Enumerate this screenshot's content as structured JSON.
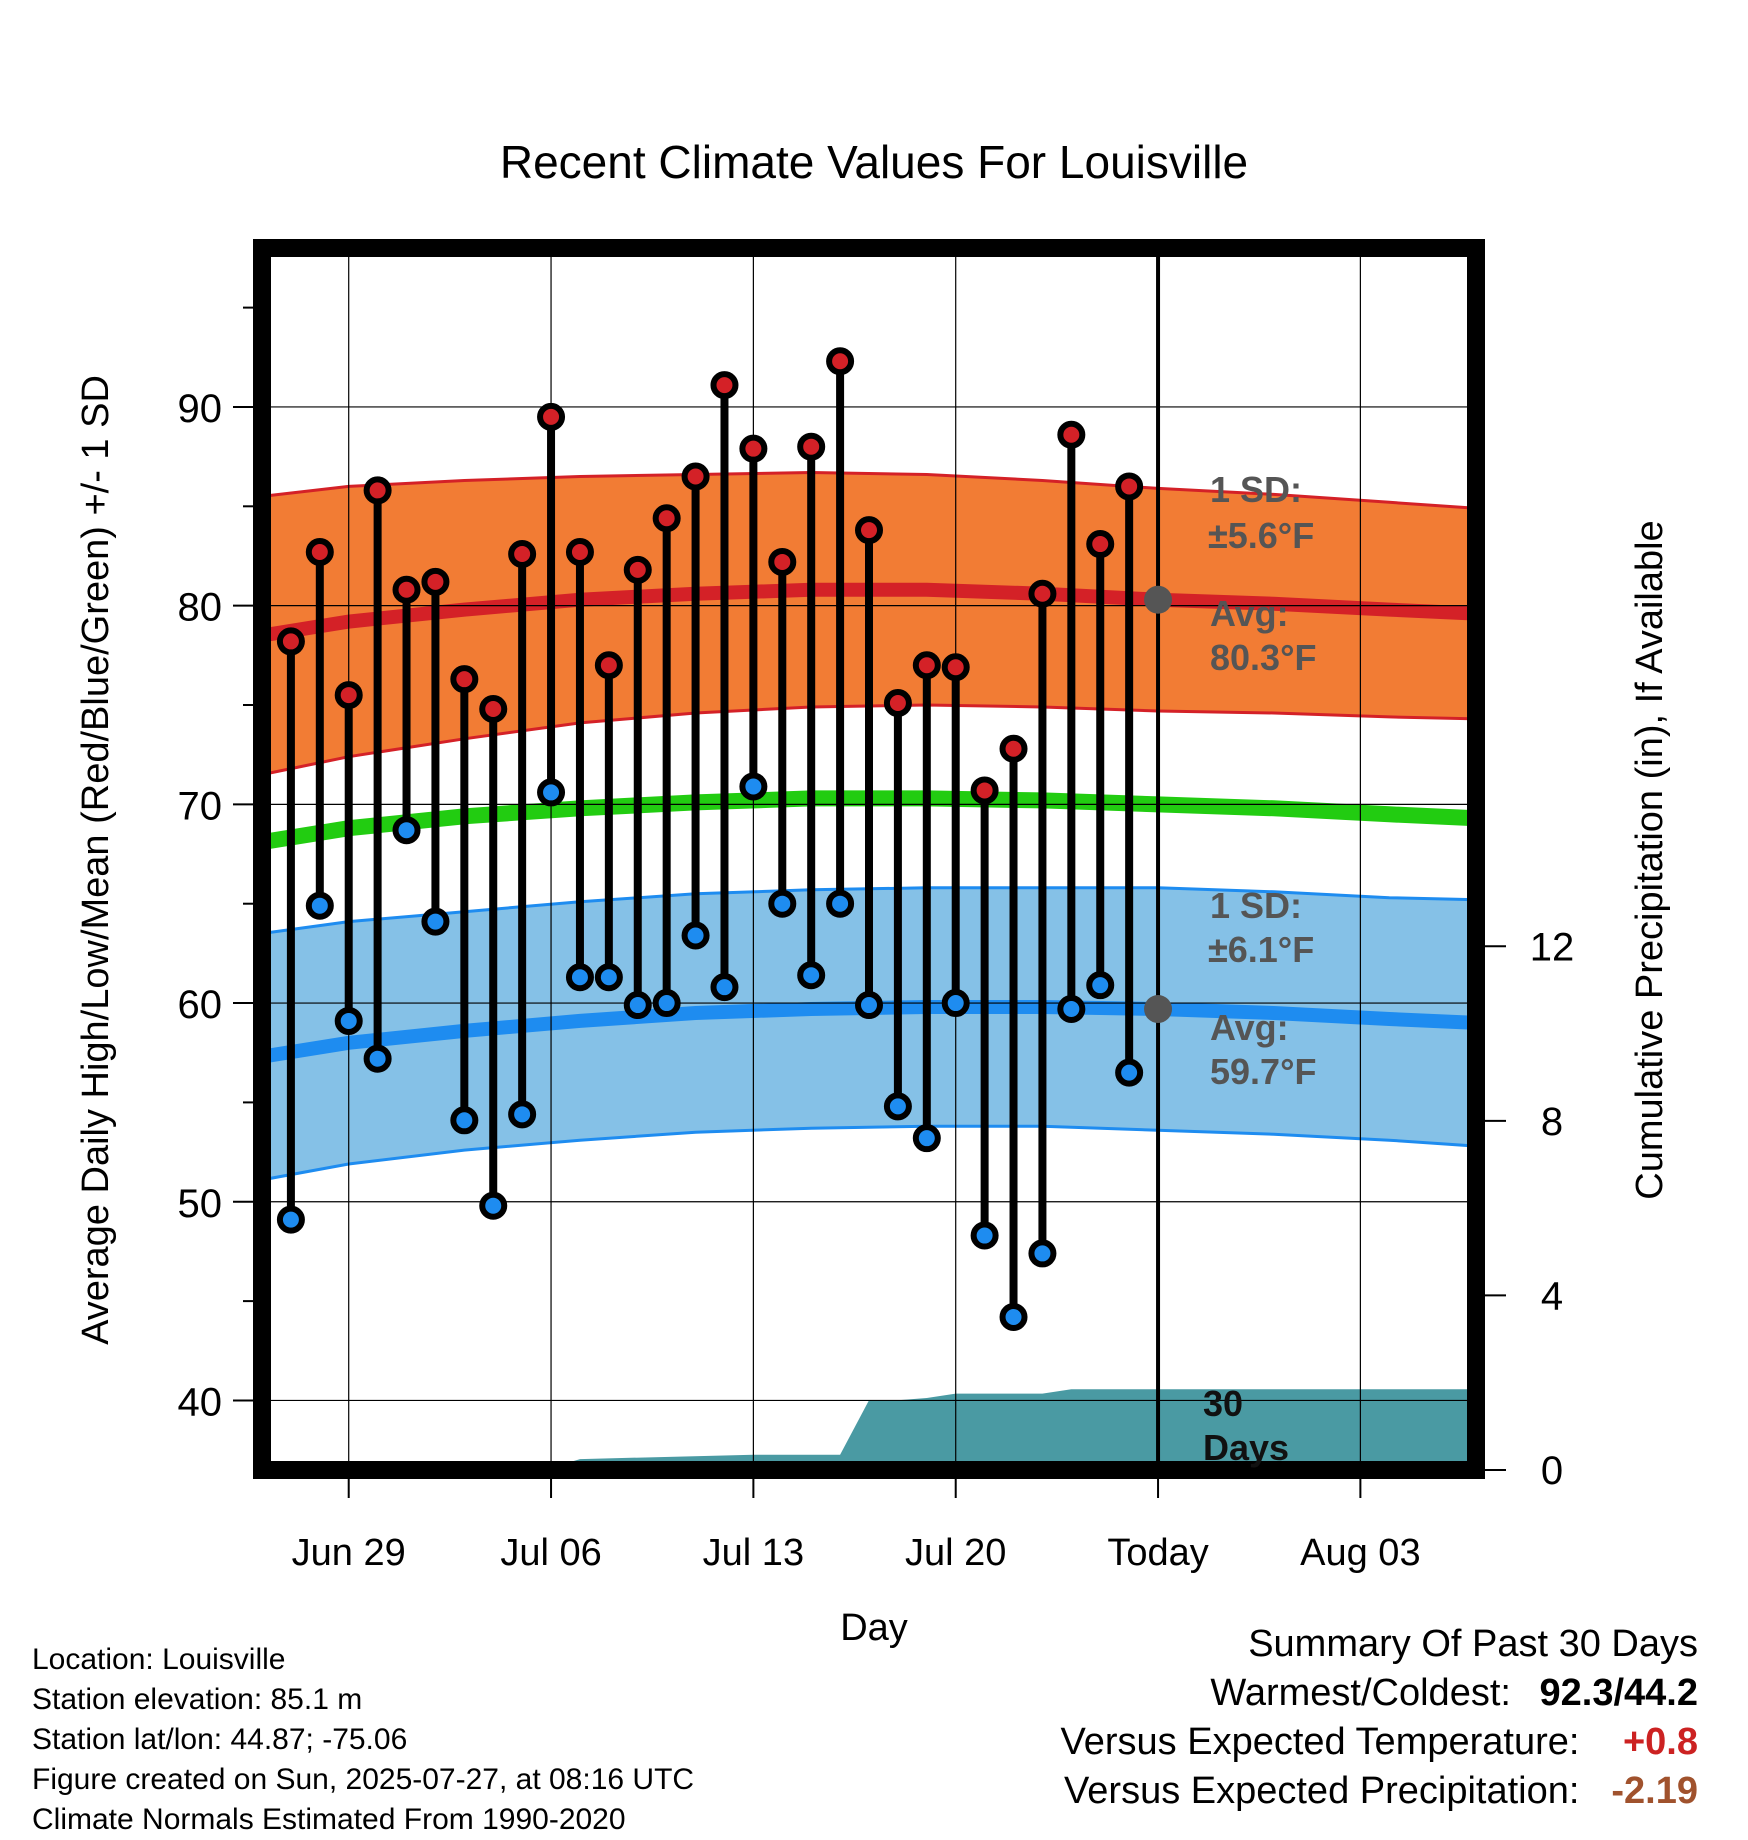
{
  "chart_data": {
    "type": "line",
    "title": "Recent Climate Values For Louisville",
    "xlabel": "Day",
    "ylabel": "Average Daily High/Low/Mean (Red/Blue/Green) +/- 1 SD",
    "y2label": "Cumulative Precipitation (in), If Available",
    "x_range": [
      "2025-06-26",
      "2025-08-07"
    ],
    "ylim": [
      36.5,
      98
    ],
    "y2lim": [
      0,
      28
    ],
    "x_ticks": [
      {
        "date": "2025-06-29",
        "label": "Jun 29"
      },
      {
        "date": "2025-07-06",
        "label": "Jul 06"
      },
      {
        "date": "2025-07-13",
        "label": "Jul 13"
      },
      {
        "date": "2025-07-20",
        "label": "Jul 20"
      },
      {
        "date": "2025-07-27",
        "label": "Today"
      },
      {
        "date": "2025-08-03",
        "label": "Aug 03"
      }
    ],
    "y_ticks": [
      40,
      50,
      60,
      70,
      80,
      90
    ],
    "y2_ticks": [
      0,
      4,
      8,
      12
    ],
    "grid": true,
    "today": "2025-07-27",
    "normals": {
      "dates": [
        "2025-06-25",
        "2025-06-29",
        "2025-07-03",
        "2025-07-07",
        "2025-07-11",
        "2025-07-15",
        "2025-07-19",
        "2025-07-23",
        "2025-07-27",
        "2025-07-31",
        "2025-08-04",
        "2025-08-07"
      ],
      "high_avg": [
        78.5,
        79.2,
        79.8,
        80.3,
        80.6,
        80.8,
        80.8,
        80.6,
        80.3,
        80.1,
        79.8,
        79.6
      ],
      "high_sd": [
        7.0,
        6.8,
        6.5,
        6.2,
        6.0,
        5.9,
        5.8,
        5.7,
        5.6,
        5.5,
        5.4,
        5.3
      ],
      "low_avg": [
        57.3,
        58.0,
        58.6,
        59.1,
        59.5,
        59.7,
        59.8,
        59.8,
        59.7,
        59.5,
        59.2,
        59.0
      ],
      "low_sd": [
        6.2,
        6.1,
        6.0,
        6.0,
        6.0,
        6.0,
        6.0,
        6.0,
        6.1,
        6.1,
        6.1,
        6.2
      ],
      "mean_avg": [
        68.1,
        68.8,
        69.4,
        69.8,
        70.1,
        70.3,
        70.3,
        70.2,
        70.0,
        69.8,
        69.5,
        69.3
      ]
    },
    "series": [
      {
        "name": "High",
        "dates": [
          "2025-06-27",
          "2025-06-28",
          "2025-06-29",
          "2025-06-30",
          "2025-07-01",
          "2025-07-02",
          "2025-07-03",
          "2025-07-04",
          "2025-07-05",
          "2025-07-06",
          "2025-07-07",
          "2025-07-08",
          "2025-07-09",
          "2025-07-10",
          "2025-07-11",
          "2025-07-12",
          "2025-07-13",
          "2025-07-14",
          "2025-07-15",
          "2025-07-16",
          "2025-07-17",
          "2025-07-18",
          "2025-07-19",
          "2025-07-20",
          "2025-07-21",
          "2025-07-22",
          "2025-07-23",
          "2025-07-24",
          "2025-07-25",
          "2025-07-26"
        ],
        "values": [
          78.2,
          82.7,
          75.5,
          85.8,
          80.8,
          81.2,
          76.3,
          74.8,
          82.6,
          89.5,
          82.7,
          77.0,
          81.8,
          84.4,
          86.5,
          91.1,
          87.9,
          82.2,
          88.0,
          92.3,
          83.8,
          75.1,
          77.0,
          76.9,
          70.7,
          72.8,
          80.6,
          88.6,
          83.1,
          86.0
        ]
      },
      {
        "name": "Low",
        "dates": [
          "2025-06-27",
          "2025-06-28",
          "2025-06-29",
          "2025-06-30",
          "2025-07-01",
          "2025-07-02",
          "2025-07-03",
          "2025-07-04",
          "2025-07-05",
          "2025-07-06",
          "2025-07-07",
          "2025-07-08",
          "2025-07-09",
          "2025-07-10",
          "2025-07-11",
          "2025-07-12",
          "2025-07-13",
          "2025-07-14",
          "2025-07-15",
          "2025-07-16",
          "2025-07-17",
          "2025-07-18",
          "2025-07-19",
          "2025-07-20",
          "2025-07-21",
          "2025-07-22",
          "2025-07-23",
          "2025-07-24",
          "2025-07-25",
          "2025-07-26"
        ],
        "values": [
          49.1,
          64.9,
          59.1,
          57.2,
          68.7,
          64.1,
          54.1,
          49.8,
          54.4,
          70.6,
          61.3,
          61.3,
          59.9,
          60.0,
          63.4,
          60.8,
          70.9,
          65.0,
          61.4,
          65.0,
          59.9,
          54.8,
          53.2,
          60.0,
          48.3,
          44.2,
          47.4,
          59.7,
          60.9,
          56.5
        ]
      }
    ],
    "precipitation": {
      "dates": [
        "2025-06-26",
        "2025-07-03",
        "2025-07-06",
        "2025-07-07",
        "2025-07-13",
        "2025-07-16",
        "2025-07-17",
        "2025-07-18",
        "2025-07-19",
        "2025-07-20",
        "2025-07-23",
        "2025-07-24",
        "2025-07-27",
        "2025-08-07"
      ],
      "cumulative": [
        0.0,
        0.05,
        0.05,
        0.25,
        0.35,
        0.35,
        1.6,
        1.6,
        1.65,
        1.75,
        1.75,
        1.85,
        1.85,
        1.85
      ]
    },
    "annotations": {
      "high_sd_label": "1 SD:",
      "high_sd_value": "±5.6°F",
      "high_avg_label": "Avg:",
      "high_avg_value": "80.3°F",
      "low_sd_label": "1 SD:",
      "low_sd_value": "±6.1°F",
      "low_avg_label": "Avg:",
      "low_avg_value": "59.7°F",
      "period_line1": "30",
      "period_line2": "Days"
    },
    "colors": {
      "high_band": "#f27c34",
      "high_line": "#d42127",
      "low_band": "#85c1e7",
      "low_line": "#1e8cf0",
      "mean_line": "#22cc11",
      "precip": "#4a9aa3",
      "high_dot": "#d42127",
      "low_dot": "#1e8cf0",
      "annotation": "#555555"
    }
  },
  "info": {
    "location": "Location: Louisville",
    "elevation": "Station elevation: 85.1 m",
    "latlon": "Station lat/lon: 44.87; -75.06",
    "created": "Figure created on Sun, 2025-07-27, at 08:16 UTC",
    "normals": "Climate Normals Estimated From 1990-2020"
  },
  "summary": {
    "title": "Summary Of Past 30 Days",
    "warm_cold_label": "Warmest/Coldest:",
    "warm_cold_value": "92.3/44.2",
    "temp_label": "Versus Expected Temperature:",
    "temp_value": "+0.8",
    "temp_color": "#cc2222",
    "precip_label": "Versus Expected Precipitation:",
    "precip_value": "-2.19",
    "precip_color": "#a0522d"
  }
}
